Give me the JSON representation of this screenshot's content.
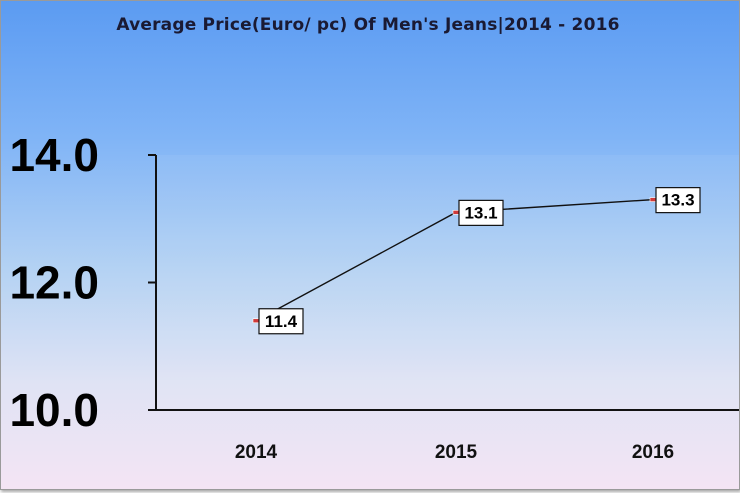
{
  "chart_data": {
    "type": "line",
    "title": "Average Price(Euro/ pc) Of Men's Jeans|2014 - 2016",
    "xlabel": "",
    "ylabel": "",
    "categories": [
      "2014",
      "2015",
      "2016"
    ],
    "series": [
      {
        "values": [
          11.4,
          13.1,
          13.3
        ],
        "data_labels": [
          "11.4",
          "13.1",
          "13.3"
        ]
      }
    ],
    "ylim": [
      10.0,
      14.0
    ],
    "yticks": [
      10.0,
      12.0,
      14.0
    ],
    "ytick_labels": [
      "10.0",
      "12.0",
      "14.0"
    ],
    "grid": false,
    "legend": "none",
    "colors": {
      "line": "#111111",
      "marker": "#d03a3a",
      "plot_bg_top": "#5b9bf2",
      "plot_bg_bottom": "#f4e4f4"
    }
  }
}
